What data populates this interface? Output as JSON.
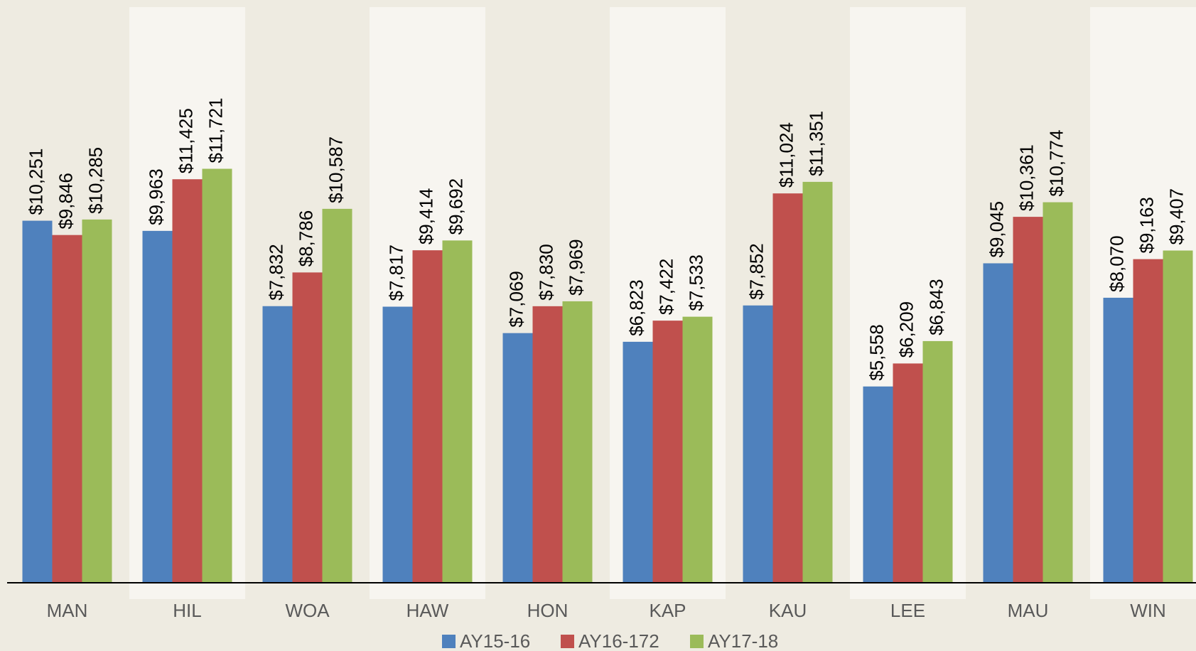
{
  "chart_data": {
    "type": "bar",
    "categories": [
      "MAN",
      "HIL",
      "WOA",
      "HAW",
      "HON",
      "KAP",
      "KAU",
      "LEE",
      "MAU",
      "WIN"
    ],
    "series": [
      {
        "name": "AY15-16",
        "color": "#4f81bd",
        "values": [
          10251,
          9963,
          7832,
          7817,
          7069,
          6823,
          7852,
          5558,
          9045,
          8070
        ],
        "value_labels": [
          "$10,251",
          "$9,963",
          "$7,832",
          "$7,817",
          "$7,069",
          "$6,823",
          "$7,852",
          "$5,558",
          "$9,045",
          "$8,070"
        ]
      },
      {
        "name": "AY16-172",
        "color": "#c0504d",
        "values": [
          9846,
          11425,
          8786,
          9414,
          7830,
          7422,
          11024,
          6209,
          10361,
          9163
        ],
        "value_labels": [
          "$9,846",
          "$11,425",
          "$8,786",
          "$9,414",
          "$7,830",
          "$7,422",
          "$11,024",
          "$6,209",
          "$10,361",
          "$9,163"
        ]
      },
      {
        "name": "AY17-18",
        "color": "#9bbb59",
        "values": [
          10285,
          11721,
          10587,
          9692,
          7969,
          7533,
          11351,
          6843,
          10774,
          9407
        ],
        "value_labels": [
          "$10,285",
          "$11,721",
          "$10,587",
          "$9,692",
          "$7,969",
          "$7,533",
          "$11,351",
          "$6,843",
          "$10,774",
          "$9,407"
        ]
      }
    ],
    "ylim": [
      0,
      16500
    ]
  }
}
